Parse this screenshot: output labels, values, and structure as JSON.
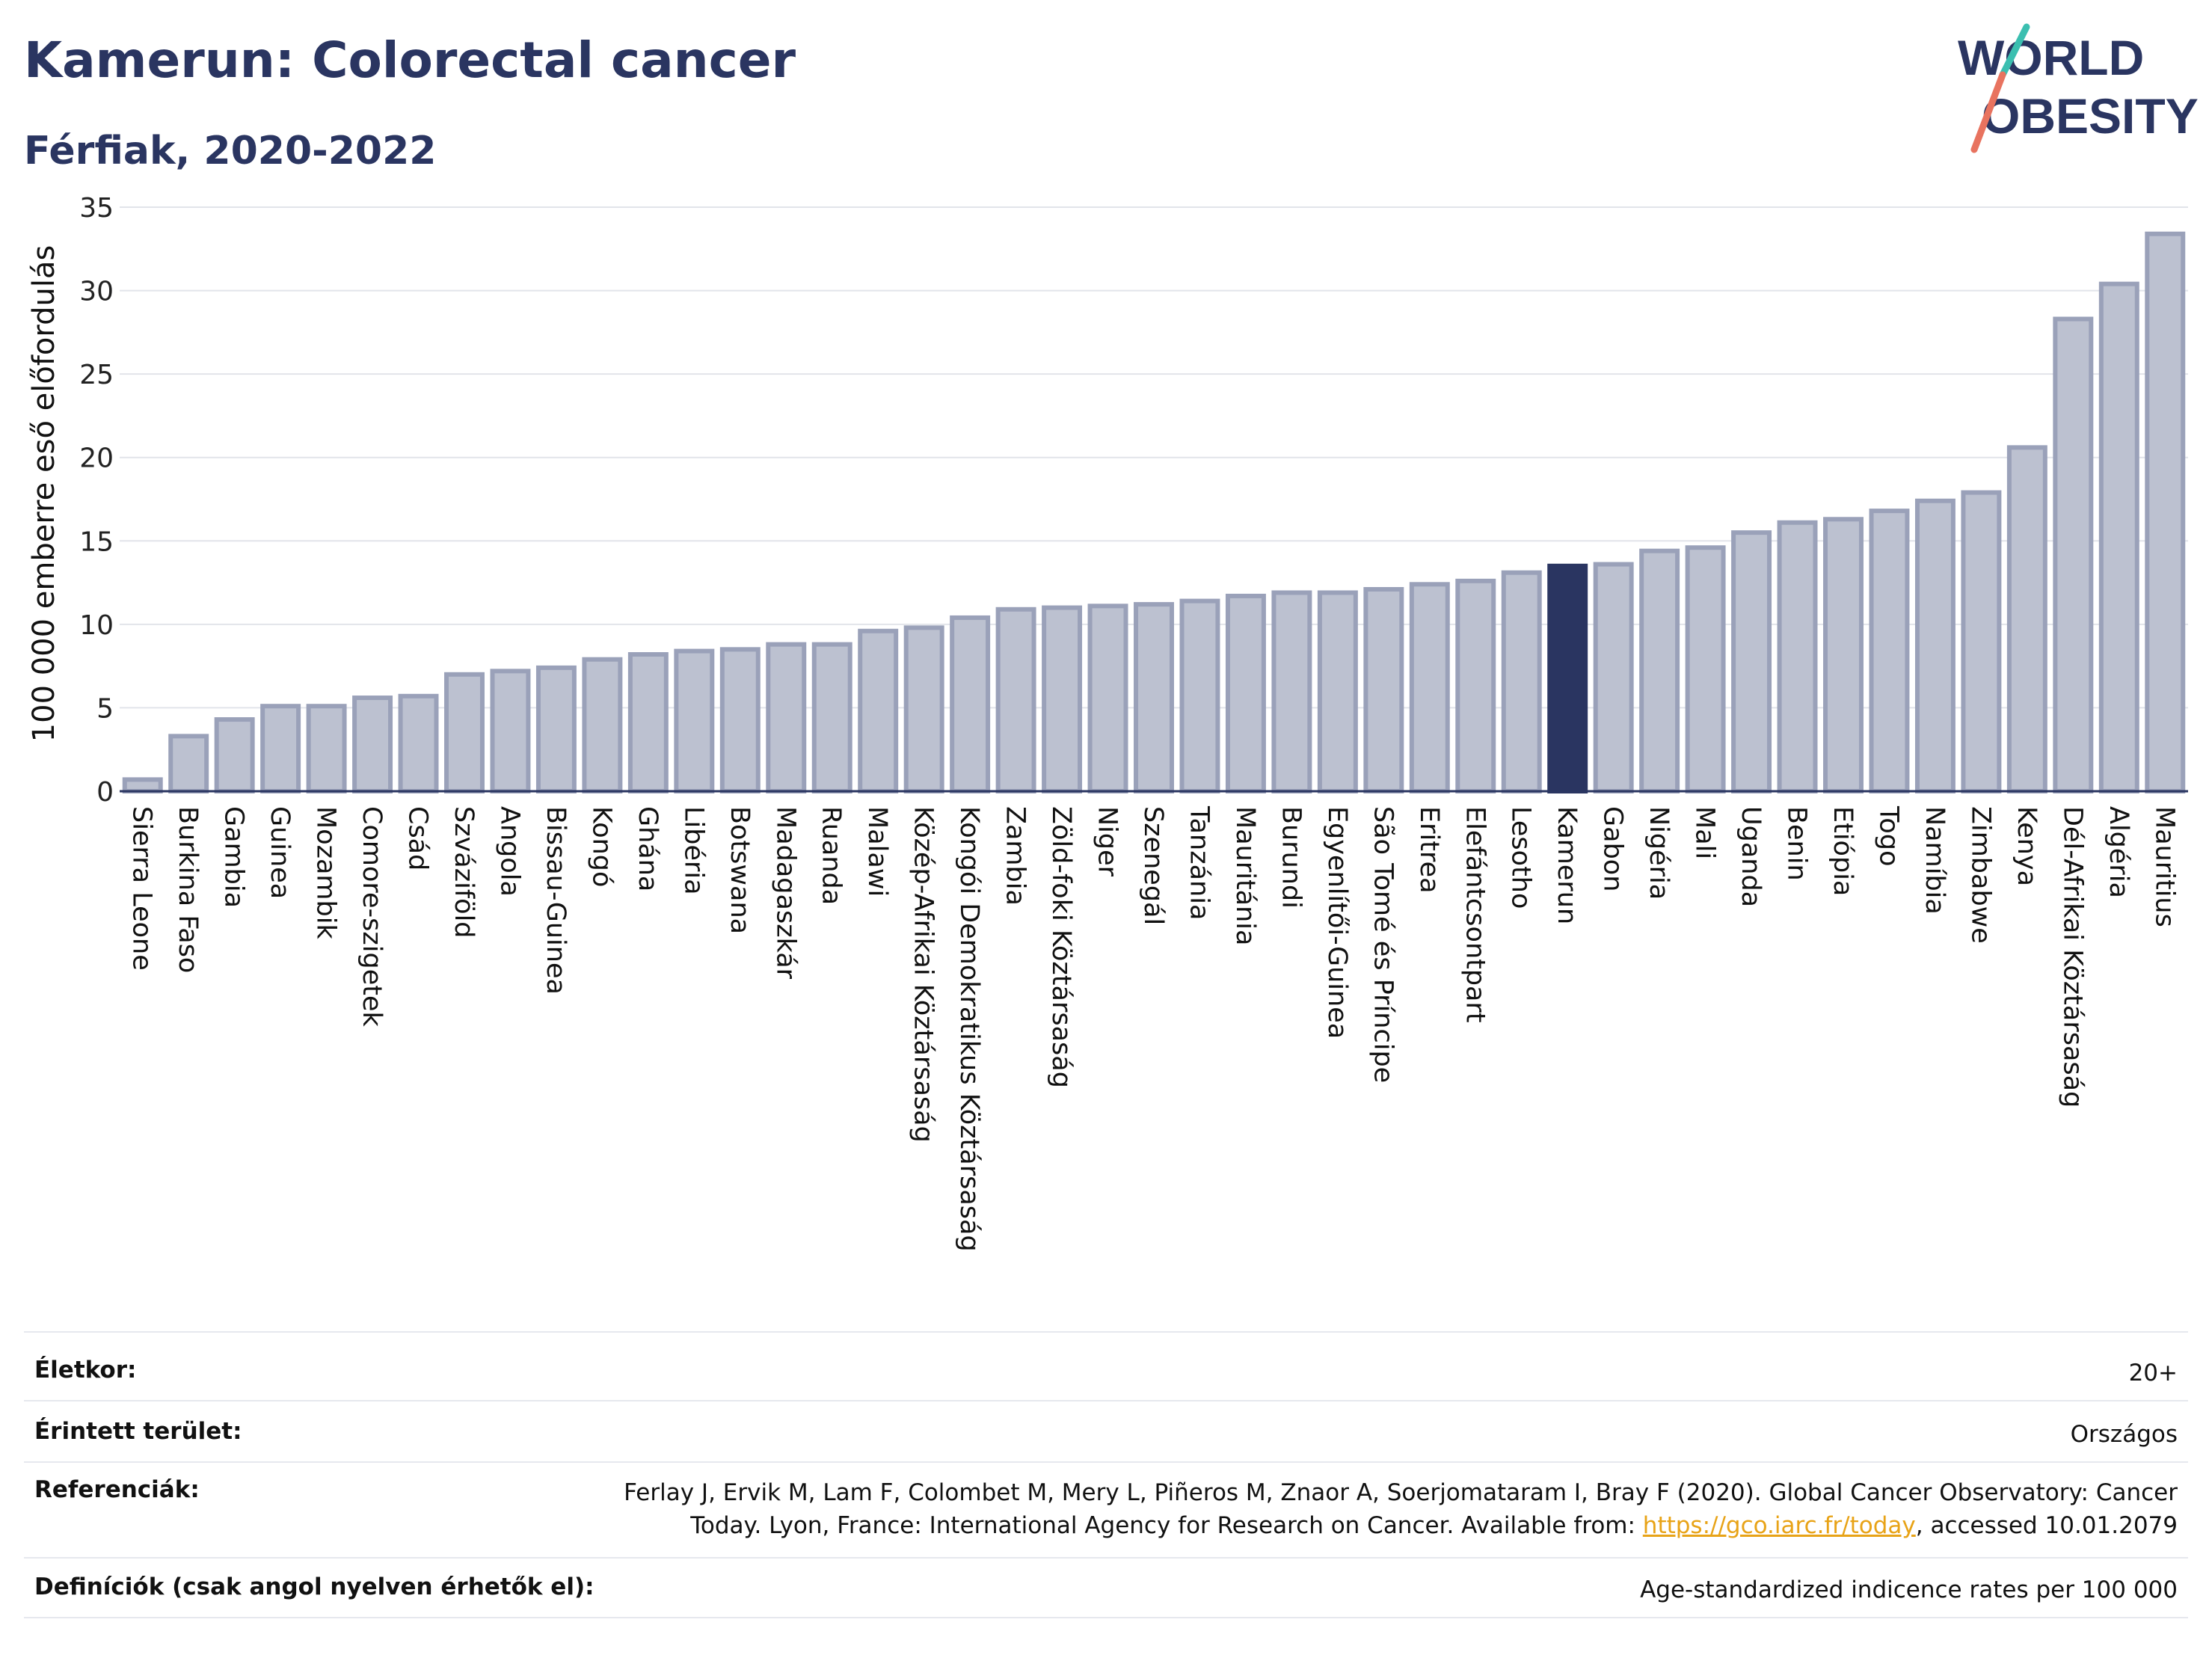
{
  "header": {
    "title": "Kamerun: Colorectal cancer",
    "subtitle": "Férfiak, 2020-2022"
  },
  "logo": {
    "line1": "WORLD",
    "line2": "OBESITY",
    "colors": {
      "text": "#2a3561",
      "slash_top": "#3bbfb0",
      "slash_bottom": "#e8735f"
    }
  },
  "chart_data": {
    "type": "bar",
    "ylabel": "100 000 emberre eső előfordulás",
    "xlabel": "",
    "ylim": [
      0,
      35
    ],
    "yticks": [
      0,
      5,
      10,
      15,
      20,
      25,
      30,
      35
    ],
    "grid": true,
    "highlight": "Kamerun",
    "colors": {
      "bar": "#bcc1d0",
      "bar_edge": "#9aa1b9",
      "highlight": "#2a3561",
      "grid": "#e2e4ea",
      "axis": "#2a3561"
    },
    "categories": [
      "Sierra Leone",
      "Burkina Faso",
      "Gambia",
      "Guinea",
      "Mozambik",
      "Comore-szigetek",
      "Csád",
      "Szváziföld",
      "Angola",
      "Bissau-Guinea",
      "Kongó",
      "Ghána",
      "Libéria",
      "Botswana",
      "Madagaszkár",
      "Ruanda",
      "Malawi",
      "Közép-Afrikai Köztársaság",
      "Kongói Demokratikus Köztársaság",
      "Zambia",
      "Zöld-foki Köztársaság",
      "Niger",
      "Szenegál",
      "Tanzánia",
      "Mauritánia",
      "Burundi",
      "Egyenlítői-Guinea",
      "São Tomé és Príncipe",
      "Eritrea",
      "Elefántcsontpart",
      "Lesotho",
      "Kamerun",
      "Gabon",
      "Nigéria",
      "Mali",
      "Uganda",
      "Benin",
      "Etiópia",
      "Togo",
      "Namíbia",
      "Zimbabwe",
      "Kenya",
      "Dél-Afrikai Köztársaság",
      "Algéria",
      "Mauritius"
    ],
    "values": [
      0.7,
      3.3,
      4.3,
      5.1,
      5.1,
      5.6,
      5.7,
      7.0,
      7.2,
      7.4,
      7.9,
      8.2,
      8.4,
      8.5,
      8.8,
      8.8,
      9.6,
      9.8,
      10.4,
      10.9,
      11.0,
      11.1,
      11.2,
      11.4,
      11.7,
      11.9,
      11.9,
      12.1,
      12.4,
      12.6,
      13.1,
      13.5,
      13.6,
      14.4,
      14.6,
      15.5,
      16.1,
      16.3,
      16.8,
      17.4,
      17.9,
      20.6,
      28.3,
      30.4,
      33.4
    ]
  },
  "meta": {
    "age_label": "Életkor:",
    "age_value": "20+",
    "area_label": "Érintett terület:",
    "area_value": "Országos",
    "ref_label": "Referenciák:",
    "ref_value_line1": "Ferlay J, Ervik M, Lam F, Colombet M, Mery L, Piñeros M, Znaor A, Soerjomataram I, Bray F (2020). Global Cancer Observatory: Cancer",
    "ref_value_line2_pre": "Today. Lyon, France: International Agency for Research on Cancer. Available from: ",
    "ref_link": "https://gco.iarc.fr/today",
    "ref_value_line2_post": ", accessed 10.01.2079",
    "def_label": "Definíciók (csak angol nyelven érhetők el):",
    "def_value": "Age-standardized indicence rates per 100 000"
  }
}
